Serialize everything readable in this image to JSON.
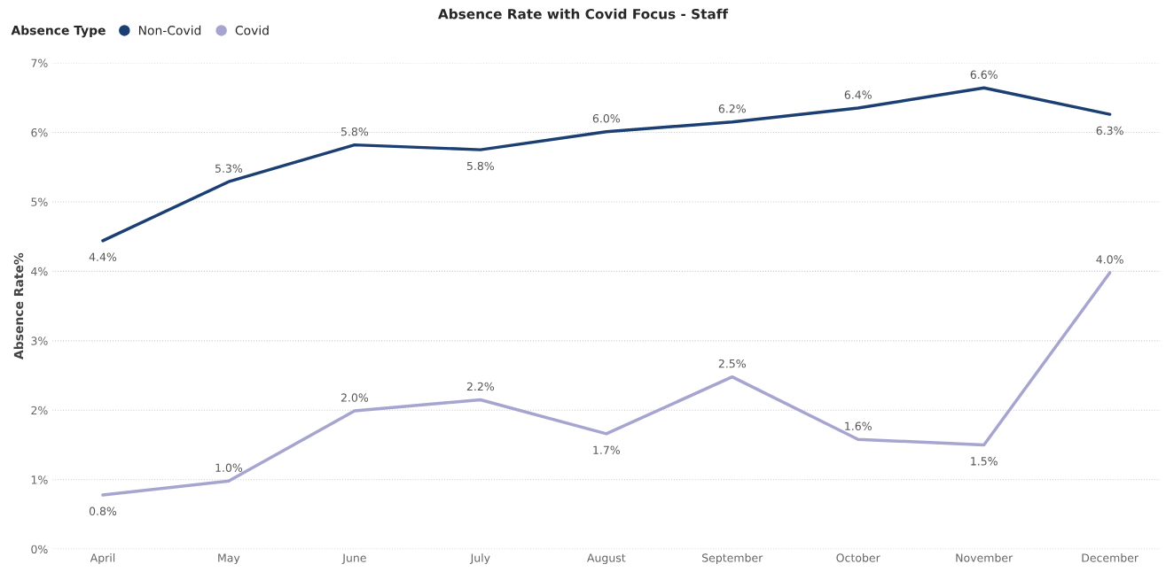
{
  "chart_data": {
    "type": "line",
    "title": "Absence Rate with Covid Focus - Staff",
    "ylabel": "Absence Rate%",
    "legend_title": "Absence Type",
    "categories": [
      "April",
      "May",
      "June",
      "July",
      "August",
      "September",
      "October",
      "November",
      "December"
    ],
    "series": [
      {
        "name": "Non-Covid",
        "color": "#1b3f73",
        "values": [
          4.44,
          5.29,
          5.82,
          5.75,
          6.01,
          6.15,
          6.35,
          6.64,
          6.26
        ],
        "value_labels": [
          "4.4%",
          "5.3%",
          "5.8%",
          "5.8%",
          "6.0%",
          "6.2%",
          "6.4%",
          "6.6%",
          "6.3%"
        ]
      },
      {
        "name": "Covid",
        "color": "#a5a5d0",
        "values": [
          0.78,
          0.98,
          1.99,
          2.15,
          1.66,
          2.48,
          1.58,
          1.5,
          3.98
        ],
        "value_labels": [
          "0.8%",
          "1.0%",
          "2.0%",
          "2.2%",
          "1.7%",
          "2.5%",
          "1.6%",
          "1.5%",
          "4.0%"
        ]
      }
    ],
    "ylim": [
      0,
      7
    ],
    "yticks": [
      {
        "value": 0,
        "label": "0%"
      },
      {
        "value": 1,
        "label": "1%"
      },
      {
        "value": 2,
        "label": "2%"
      },
      {
        "value": 3,
        "label": "3%"
      },
      {
        "value": 4,
        "label": "4%"
      },
      {
        "value": 5,
        "label": "5%"
      },
      {
        "value": 6,
        "label": "6%"
      },
      {
        "value": 7,
        "label": "7%"
      }
    ],
    "grid": "y",
    "legend": "top left",
    "marker": "none",
    "line_style": "solid"
  }
}
